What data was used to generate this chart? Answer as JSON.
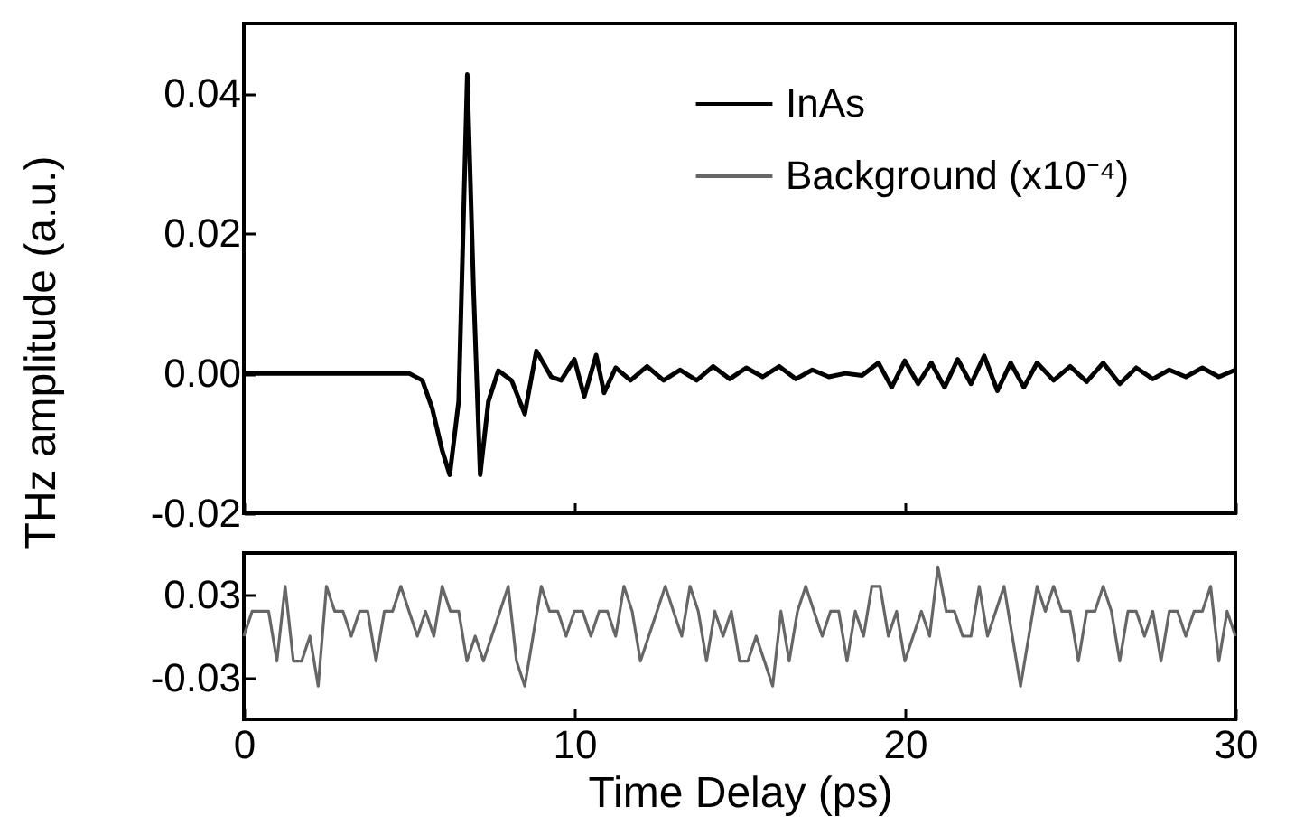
{
  "chart_data": [
    {
      "type": "line",
      "ylabel": "THz amplitude (a.u.)",
      "xlim": [
        0,
        30
      ],
      "xticks": [
        0,
        10,
        20,
        30
      ],
      "ylim": [
        -0.02,
        0.05
      ],
      "yticks": [
        0.04,
        0.02,
        {
          "value": 0,
          "label": "0.00"
        },
        -0.02
      ],
      "tick_labels": "y",
      "legend": "top right",
      "line_style": "solid",
      "series": [
        {
          "name": "InAs",
          "color": "#000000",
          "x": [
            0,
            5,
            5.4,
            5.7,
            6.0,
            6.23,
            6.5,
            6.76,
            6.95,
            7.15,
            7.4,
            7.7,
            8.1,
            8.5,
            8.85,
            9.3,
            9.6,
            10.0,
            10.3,
            10.66,
            10.9,
            11.25,
            11.7,
            12.2,
            12.7,
            13.2,
            13.7,
            14.2,
            14.7,
            15.2,
            15.7,
            16.2,
            16.7,
            17.2,
            17.7,
            18.2,
            18.7,
            19.2,
            19.6,
            20.0,
            20.4,
            20.8,
            21.2,
            21.6,
            22.0,
            22.4,
            22.8,
            23.2,
            23.6,
            24.0,
            24.5,
            25,
            25.5,
            26,
            26.5,
            27,
            27.5,
            28,
            28.5,
            29,
            29.5,
            30
          ],
          "values": [
            0,
            0,
            -0.001,
            -0.005,
            -0.011,
            -0.0145,
            -0.004,
            0.0427,
            0.012,
            -0.0145,
            -0.004,
            0.0004,
            -0.001,
            -0.0058,
            0.0032,
            -0.0005,
            -0.001,
            0.002,
            -0.0033,
            0.0026,
            -0.0028,
            0.0008,
            -0.001,
            0.001,
            -0.001,
            0.0005,
            -0.001,
            0.001,
            -0.0008,
            0.0008,
            -0.0005,
            0.001,
            -0.0008,
            0.0005,
            -0.0005,
            0.0,
            -0.0003,
            0.0015,
            -0.002,
            0.0018,
            -0.0015,
            0.0015,
            -0.002,
            0.002,
            -0.0015,
            0.0025,
            -0.0025,
            0.0015,
            -0.002,
            0.0015,
            -0.001,
            0.001,
            -0.0012,
            0.0015,
            -0.0015,
            0.0008,
            -0.0008,
            0.0005,
            -0.0005,
            0.0008,
            -0.0005,
            0.0005
          ]
        }
      ]
    },
    {
      "type": "line",
      "xlabel": "Time Delay (ps)",
      "xlim": [
        0,
        30
      ],
      "xticks": [
        0,
        10,
        20,
        30
      ],
      "ylim": [
        -0.06,
        0.06
      ],
      "yticks": [
        0.03,
        -0.03
      ],
      "line_style": "solid",
      "series": [
        {
          "name": "Background (x10⁻⁴)",
          "color": "#666666",
          "x": [
            0,
            0.25,
            0.5,
            0.75,
            1,
            1.25,
            1.5,
            1.75,
            2,
            2.25,
            2.5,
            2.75,
            3,
            3.25,
            3.5,
            3.75,
            4,
            4.25,
            4.5,
            4.75,
            5,
            5.25,
            5.5,
            5.75,
            6,
            6.25,
            6.5,
            6.75,
            7,
            7.25,
            7.5,
            7.75,
            8,
            8.25,
            8.5,
            8.75,
            9,
            9.25,
            9.5,
            9.75,
            10,
            10.25,
            10.5,
            10.75,
            11,
            11.25,
            11.5,
            11.75,
            12,
            12.25,
            12.5,
            12.75,
            13,
            13.25,
            13.5,
            13.75,
            14,
            14.25,
            14.5,
            14.75,
            15,
            15.25,
            15.5,
            15.75,
            16,
            16.25,
            16.5,
            16.75,
            17,
            17.25,
            17.5,
            17.75,
            18,
            18.25,
            18.5,
            18.75,
            19,
            19.25,
            19.5,
            19.75,
            20,
            20.25,
            20.5,
            20.75,
            21,
            21.25,
            21.5,
            21.75,
            22,
            22.25,
            22.5,
            22.75,
            23,
            23.25,
            23.5,
            23.75,
            24,
            24.25,
            24.5,
            24.75,
            25,
            25.25,
            25.5,
            25.75,
            26,
            26.25,
            26.5,
            26.75,
            27,
            27.25,
            27.5,
            27.75,
            28,
            28.25,
            28.5,
            28.75,
            29,
            29.25,
            29.5,
            29.75,
            30
          ],
          "values": [
            0,
            0.018,
            0.018,
            0.018,
            -0.018,
            0.036,
            -0.018,
            -0.018,
            0,
            -0.036,
            0.036,
            0.018,
            0.018,
            0,
            0.018,
            0.018,
            -0.018,
            0.018,
            0.018,
            0.036,
            0.018,
            0,
            0.018,
            0,
            0.036,
            0.018,
            0.018,
            -0.018,
            0,
            -0.018,
            0,
            0.018,
            0.036,
            -0.018,
            -0.036,
            0,
            0.036,
            0.018,
            0.018,
            0,
            0.018,
            0.018,
            0,
            0.018,
            0.018,
            0,
            0.036,
            0.018,
            -0.018,
            0,
            0.018,
            0.036,
            0.018,
            0,
            0.036,
            0.018,
            -0.018,
            0.018,
            0,
            0.018,
            -0.018,
            -0.018,
            0,
            -0.018,
            -0.036,
            0.018,
            -0.018,
            0.018,
            0.036,
            0.018,
            0,
            0.018,
            0.018,
            -0.018,
            0.018,
            0,
            0.036,
            0.036,
            0,
            0.018,
            -0.018,
            0,
            0.018,
            0,
            0.05,
            0.018,
            0.018,
            0,
            0,
            0.036,
            0,
            0.018,
            0.036,
            0,
            -0.036,
            0,
            0.036,
            0.018,
            0.036,
            0.018,
            0.018,
            -0.018,
            0.018,
            0.018,
            0.036,
            0.018,
            -0.018,
            0.018,
            0.018,
            0,
            0.018,
            -0.018,
            0.018,
            0.018,
            0,
            0.018,
            0.018,
            0.036,
            -0.018,
            0.018,
            0
          ]
        }
      ]
    }
  ]
}
